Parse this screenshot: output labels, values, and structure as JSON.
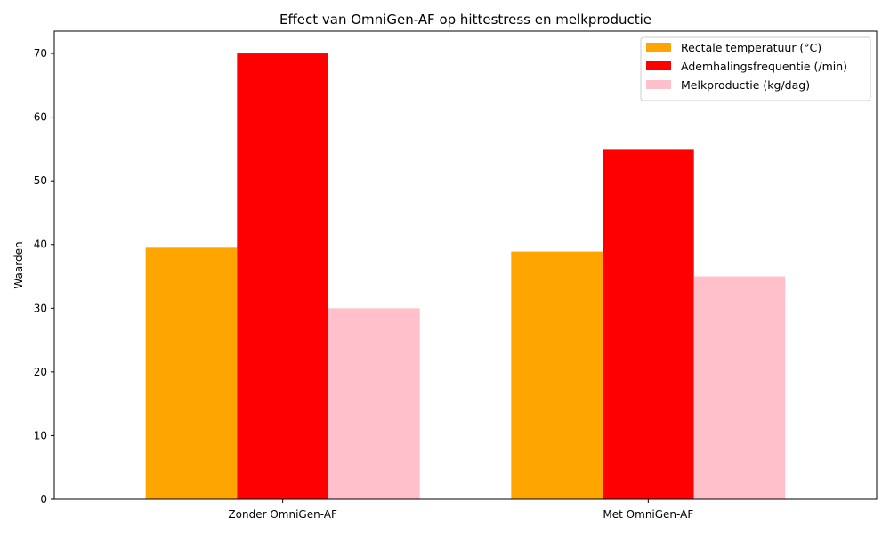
{
  "chart_data": {
    "type": "bar",
    "title": "Effect van OmniGen-AF op hittestress en melkproductie",
    "xlabel": "",
    "ylabel": "Waarden",
    "ylim": [
      0,
      73.5
    ],
    "yticks": [
      0,
      10,
      20,
      30,
      40,
      50,
      60,
      70
    ],
    "categories": [
      "Zonder OmniGen-AF",
      "Met OmniGen-AF"
    ],
    "series": [
      {
        "name": "Rectale temperatuur (°C)",
        "color": "#ffa500",
        "values": [
          39.5,
          38.9
        ]
      },
      {
        "name": "Ademhalingsfrequentie (/min)",
        "color": "#ff0000",
        "values": [
          70,
          55
        ]
      },
      {
        "name": "Melkproductie (kg/dag)",
        "color": "#ffc0cb",
        "values": [
          30,
          35
        ]
      }
    ],
    "legend_position": "top-right",
    "grid": false
  }
}
